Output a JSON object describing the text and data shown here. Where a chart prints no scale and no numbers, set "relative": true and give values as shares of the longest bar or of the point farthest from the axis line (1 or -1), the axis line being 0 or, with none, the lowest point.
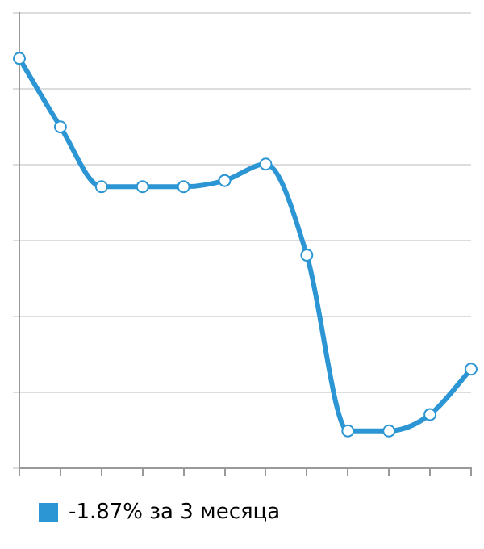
{
  "chart_data": {
    "type": "line",
    "relative": true,
    "categories": [
      null,
      null,
      null,
      null,
      null,
      null,
      null,
      null,
      null,
      null,
      null,
      null
    ],
    "series": [
      {
        "name": "-1.87% за 3 месяца",
        "color": "#2b96d3",
        "values": [
          1,
          0.833,
          0.687,
          0.687,
          0.687,
          0.702,
          0.742,
          0.52,
          0.091,
          0.091,
          0.131,
          0.242
        ]
      }
    ],
    "marker": "circle",
    "grid": "y",
    "legend": "bottom"
  }
}
